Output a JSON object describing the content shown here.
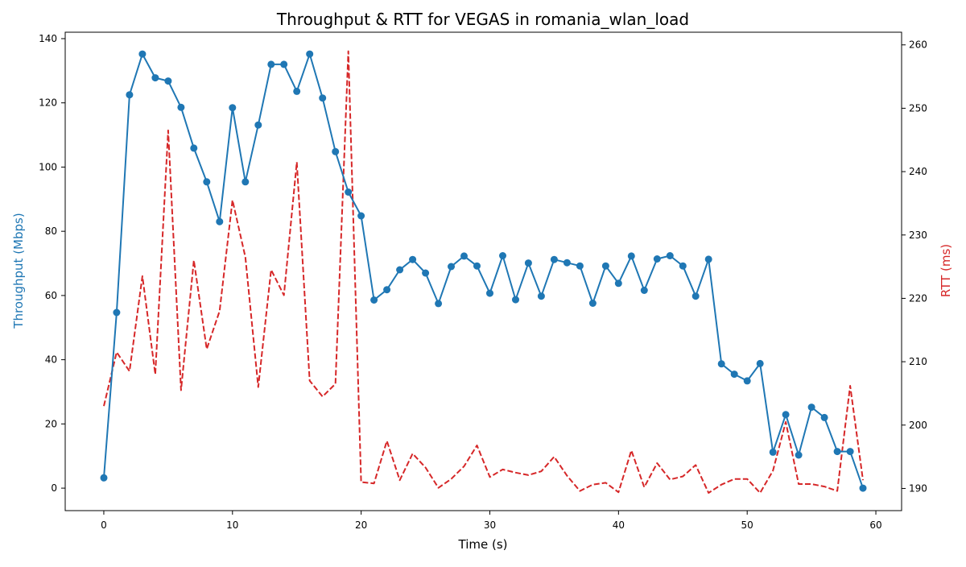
{
  "chart_data": {
    "type": "line",
    "title": "Throughput & RTT for VEGAS in romania_wlan_load",
    "xlabel": "Time (s)",
    "ylabel_left": "Throughput (Mbps)",
    "ylabel_right": "RTT (ms)",
    "xlim": [
      -3,
      62
    ],
    "ylim_left": [
      -7,
      142
    ],
    "ylim_right": [
      186.5,
      262
    ],
    "x_ticks": [
      0,
      10,
      20,
      30,
      40,
      50,
      60
    ],
    "y_ticks_left": [
      0,
      20,
      40,
      60,
      80,
      100,
      120,
      140
    ],
    "y_ticks_right": [
      190,
      200,
      210,
      220,
      230,
      240,
      250,
      260
    ],
    "grid": false,
    "colors": {
      "throughput": "#1f77b4",
      "rtt": "#d62728"
    },
    "series": [
      {
        "axis": "left",
        "style": "solid-with-markers",
        "x": [
          0,
          1,
          2,
          3,
          4,
          5,
          6,
          7,
          8,
          9,
          10,
          11,
          12,
          13,
          14,
          15,
          16,
          17,
          18,
          19,
          20,
          21,
          22,
          23,
          24,
          25,
          26,
          27,
          28,
          29,
          30,
          31,
          32,
          33,
          34,
          35,
          36,
          37,
          38,
          39,
          40,
          41,
          42,
          43,
          44,
          45,
          46,
          47,
          48,
          49,
          50,
          51,
          52,
          53,
          54,
          55,
          56,
          57,
          58,
          59
        ],
        "values": [
          3.2,
          54.7,
          122.5,
          135.2,
          127.8,
          126.8,
          118.6,
          105.9,
          95.4,
          83.0,
          118.5,
          95.4,
          113.1,
          132.0,
          132.0,
          123.6,
          135.2,
          121.5,
          104.8,
          92.2,
          84.8,
          58.6,
          61.8,
          68.0,
          71.2,
          67.0,
          57.5,
          69.0,
          72.3,
          69.2,
          60.7,
          72.4,
          58.7,
          70.1,
          59.8,
          71.2,
          70.2,
          69.2,
          57.6,
          69.2,
          63.8,
          72.3,
          61.6,
          71.4,
          72.4,
          69.2,
          59.8,
          71.3,
          38.7,
          35.5,
          33.4,
          38.8,
          11.2,
          22.9,
          10.3,
          25.2,
          22.0,
          11.4,
          11.4,
          0.0
        ]
      },
      {
        "axis": "right",
        "style": "dashed",
        "x": [
          0,
          1,
          2,
          3,
          4,
          5,
          6,
          7,
          8,
          9,
          10,
          11,
          12,
          13,
          14,
          15,
          16,
          17,
          18,
          19,
          20,
          21,
          22,
          23,
          24,
          25,
          26,
          27,
          28,
          29,
          30,
          31,
          32,
          33,
          34,
          35,
          36,
          37,
          38,
          39,
          40,
          41,
          42,
          43,
          44,
          45,
          46,
          47,
          48,
          49,
          50,
          51,
          52,
          53,
          54,
          55,
          56,
          57,
          58,
          59
        ],
        "values": [
          203,
          211.5,
          208.5,
          223.5,
          208,
          246.5,
          205.5,
          226,
          212,
          218,
          235.5,
          226.5,
          206,
          224.5,
          220.5,
          241.5,
          207,
          204.5,
          206.5,
          259,
          191,
          190.8,
          197.5,
          191.3,
          195.5,
          193.3,
          190.1,
          191.5,
          193.5,
          196.8,
          191.8,
          193,
          192.5,
          192.1,
          192.7,
          195,
          192,
          189.6,
          190.6,
          190.9,
          189.4,
          196,
          190.2,
          194,
          191.4,
          191.9,
          193.7,
          189.3,
          190.6,
          191.5,
          191.5,
          189.3,
          192.8,
          200.5,
          190.7,
          190.7,
          190.3,
          189.6,
          206.2,
          191.3
        ]
      }
    ]
  }
}
